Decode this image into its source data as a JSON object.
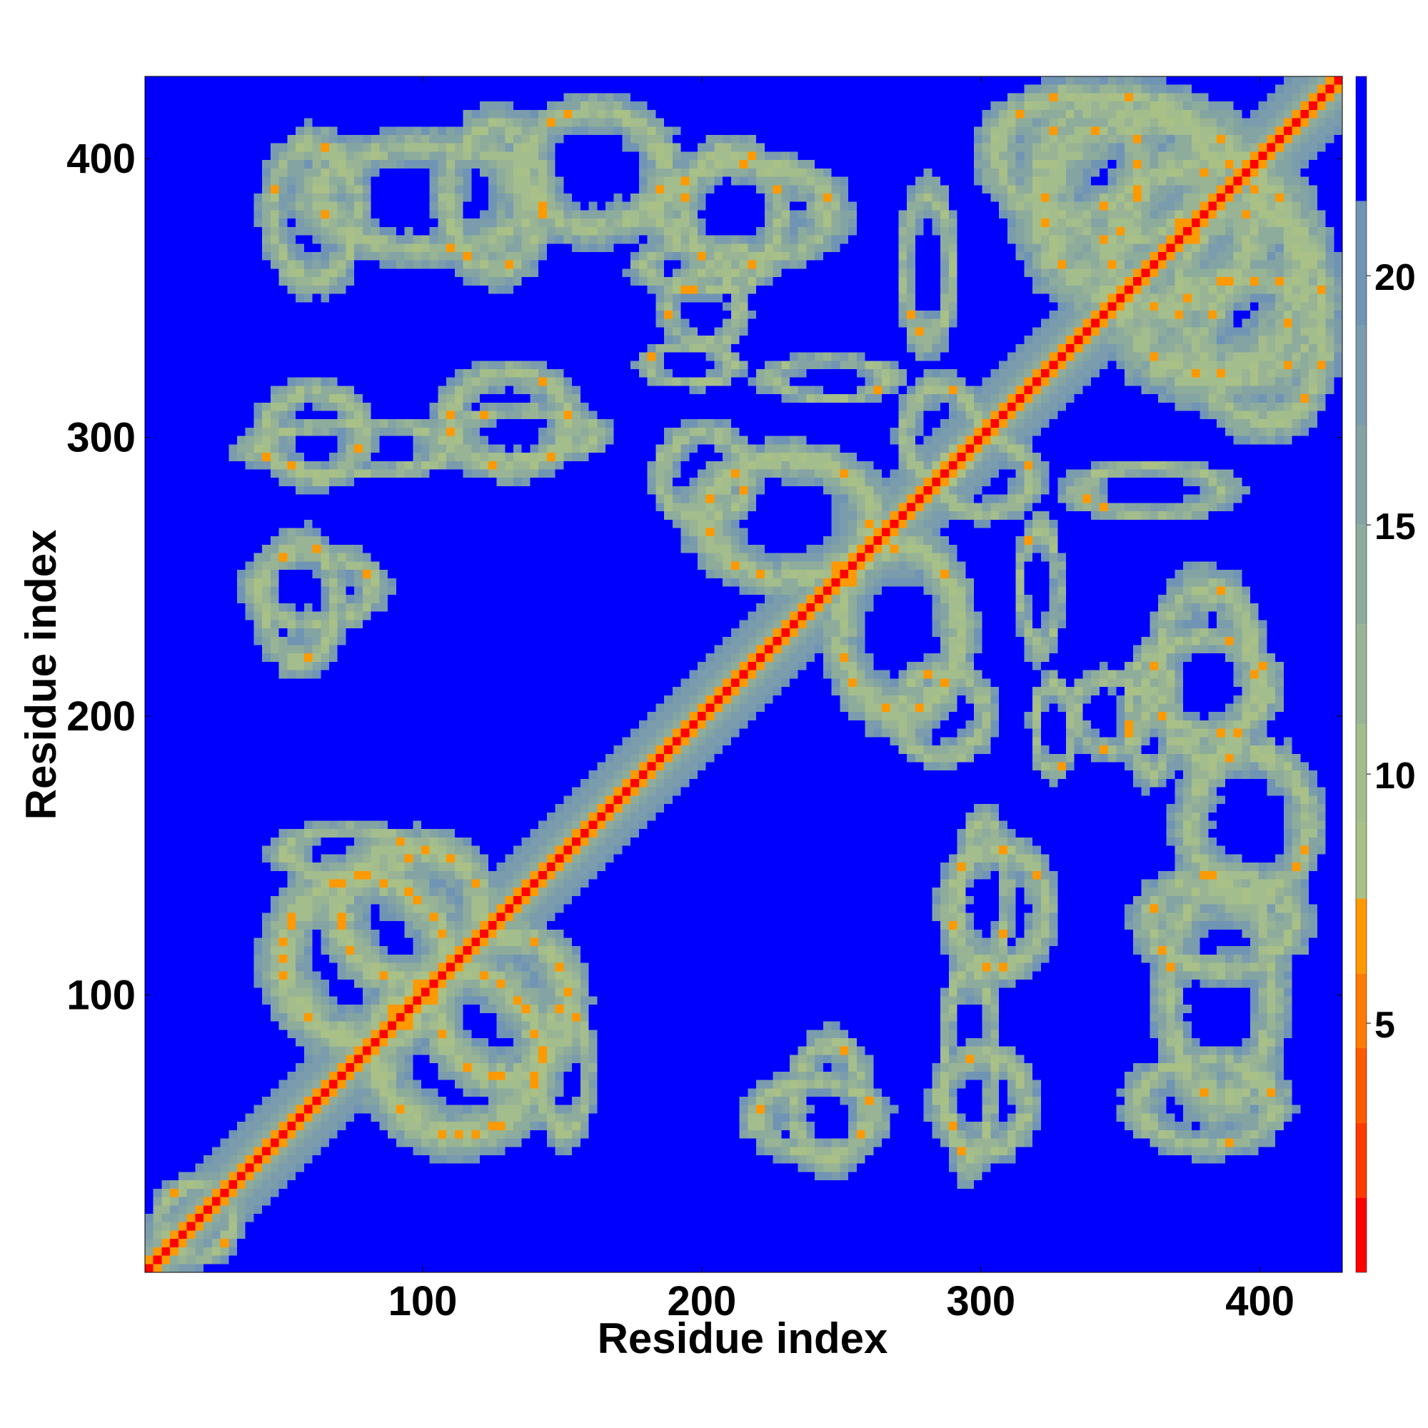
{
  "chart_data": {
    "type": "heatmap",
    "title": "",
    "xlabel": "Residue index",
    "ylabel": "Residue index",
    "n_residues": 429,
    "xlim": [
      1,
      429
    ],
    "ylim": [
      1,
      429
    ],
    "xticks": [
      100,
      200,
      300,
      400
    ],
    "yticks": [
      100,
      200,
      300,
      400
    ],
    "grid": false,
    "colorbar": {
      "range": [
        0,
        24
      ],
      "ticks": [
        5,
        10,
        15,
        20
      ],
      "levels": [
        {
          "upto": 1.5,
          "color": "#ff0000"
        },
        {
          "upto": 3,
          "color": "#ff3a00"
        },
        {
          "upto": 4.5,
          "color": "#ff5a00"
        },
        {
          "upto": 6,
          "color": "#ff7a00"
        },
        {
          "upto": 7.5,
          "color": "#ff9900"
        },
        {
          "upto": 9,
          "color": "#a9c086"
        },
        {
          "upto": 11,
          "color": "#a4bd8c"
        },
        {
          "upto": 13,
          "color": "#98b494"
        },
        {
          "upto": 15,
          "color": "#8eac9c"
        },
        {
          "upto": 17,
          "color": "#84a4a4"
        },
        {
          "upto": 19,
          "color": "#7a9cac"
        },
        {
          "upto": 21.5,
          "color": "#7094b4"
        },
        {
          "upto": 24,
          "color": "#0000ff"
        }
      ]
    },
    "contact_features": [
      {
        "kind": "diagonal",
        "from": 1,
        "to": 429,
        "width": 2.5
      },
      {
        "kind": "blob",
        "x": 78,
        "y": 112,
        "rx": 34,
        "ry": 34
      },
      {
        "kind": "blob",
        "x": 112,
        "y": 78,
        "rx": 34,
        "ry": 34
      },
      {
        "kind": "blob",
        "x": 95,
        "y": 128,
        "rx": 30,
        "ry": 28
      },
      {
        "kind": "blob",
        "x": 128,
        "y": 95,
        "rx": 28,
        "ry": 30
      },
      {
        "kind": "blob",
        "x": 72,
        "y": 150,
        "rx": 26,
        "ry": 10
      },
      {
        "kind": "blob",
        "x": 150,
        "y": 72,
        "rx": 10,
        "ry": 26
      },
      {
        "kind": "blob",
        "x": 100,
        "y": 385,
        "rx": 45,
        "ry": 22
      },
      {
        "kind": "blob",
        "x": 160,
        "y": 395,
        "rx": 30,
        "ry": 25
      },
      {
        "kind": "blob",
        "x": 215,
        "y": 380,
        "rx": 35,
        "ry": 20
      },
      {
        "kind": "blob",
        "x": 245,
        "y": 320,
        "rx": 25,
        "ry": 8
      },
      {
        "kind": "blob",
        "x": 75,
        "y": 295,
        "rx": 40,
        "ry": 10
      },
      {
        "kind": "blob",
        "x": 135,
        "y": 300,
        "rx": 30,
        "ry": 10
      },
      {
        "kind": "blob",
        "x": 60,
        "y": 245,
        "rx": 25,
        "ry": 15
      },
      {
        "kind": "blob",
        "x": 230,
        "y": 270,
        "rx": 35,
        "ry": 25
      },
      {
        "kind": "blob",
        "x": 270,
        "y": 230,
        "rx": 25,
        "ry": 35
      },
      {
        "kind": "blob",
        "x": 285,
        "y": 300,
        "rx": 15,
        "ry": 20
      },
      {
        "kind": "blob",
        "x": 380,
        "y": 360,
        "rx": 40,
        "ry": 45
      },
      {
        "kind": "blob",
        "x": 350,
        "y": 395,
        "rx": 35,
        "ry": 30
      },
      {
        "kind": "blob",
        "x": 400,
        "y": 330,
        "rx": 25,
        "ry": 30
      },
      {
        "kind": "blob",
        "x": 360,
        "y": 280,
        "rx": 30,
        "ry": 10
      },
      {
        "kind": "blob",
        "x": 380,
        "y": 210,
        "rx": 25,
        "ry": 20
      },
      {
        "kind": "blob",
        "x": 345,
        "y": 200,
        "rx": 15,
        "ry": 15
      },
      {
        "kind": "blob",
        "x": 385,
        "y": 125,
        "rx": 30,
        "ry": 20
      },
      {
        "kind": "blob",
        "x": 305,
        "y": 130,
        "rx": 20,
        "ry": 25
      },
      {
        "kind": "blob",
        "x": 300,
        "y": 60,
        "rx": 18,
        "ry": 20
      },
      {
        "kind": "blob",
        "x": 380,
        "y": 60,
        "rx": 28,
        "ry": 18
      },
      {
        "kind": "blob",
        "x": 240,
        "y": 55,
        "rx": 25,
        "ry": 15
      },
      {
        "kind": "blob",
        "x": 285,
        "y": 200,
        "rx": 18,
        "ry": 18
      },
      {
        "kind": "blob",
        "x": 200,
        "y": 360,
        "rx": 25,
        "ry": 10
      },
      {
        "kind": "blob",
        "x": 195,
        "y": 325,
        "rx": 18,
        "ry": 8
      },
      {
        "kind": "blob",
        "x": 18,
        "y": 18,
        "rx": 15,
        "ry": 15
      }
    ]
  }
}
